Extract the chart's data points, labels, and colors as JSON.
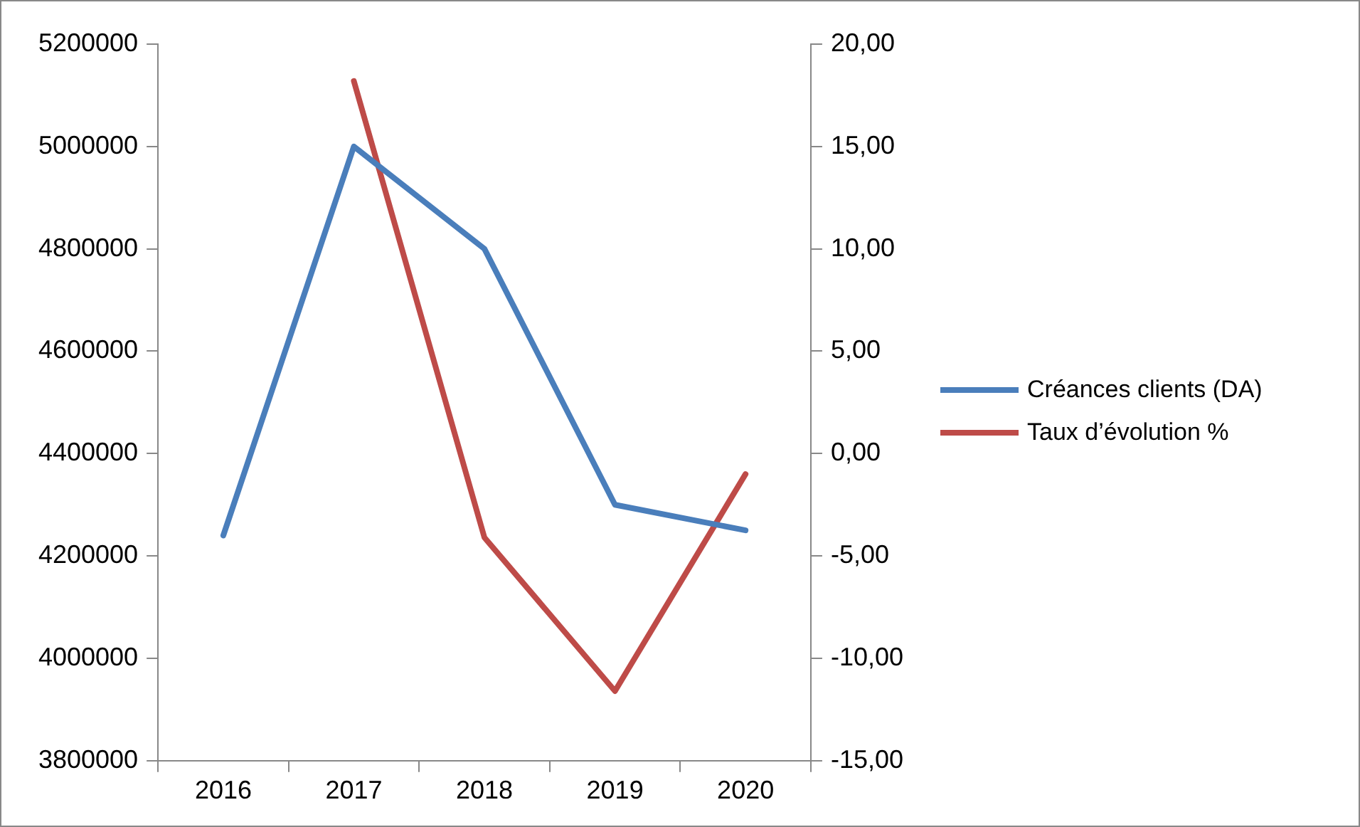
{
  "chart_data": {
    "type": "line",
    "categories": [
      "2016",
      "2017",
      "2018",
      "2019",
      "2020"
    ],
    "series": [
      {
        "name": "Créances clients (DA)",
        "color": "#4a7ebb",
        "values": [
          4240000,
          5000000,
          4800000,
          4300000,
          4250000
        ]
      },
      {
        "name": "Taux d’évolution %",
        "color": "#be4b48",
        "axis": "y2",
        "values": [
          null,
          18.2,
          -4.1,
          -11.6,
          -1.0
        ]
      }
    ],
    "ylim": [
      3800000,
      5200000
    ],
    "yticks": [
      3800000,
      4000000,
      4200000,
      4400000,
      4600000,
      4800000,
      5000000,
      5200000
    ],
    "y2lim": [
      -15,
      20
    ],
    "y2ticks": [
      {
        "value": -15,
        "label": "-15,00"
      },
      {
        "value": -10,
        "label": "-10,00"
      },
      {
        "value": -5,
        "label": "-5,00"
      },
      {
        "value": 0,
        "label": "0,00"
      },
      {
        "value": 5,
        "label": "5,00"
      },
      {
        "value": 10,
        "label": "10,00"
      },
      {
        "value": 15,
        "label": "15,00"
      },
      {
        "value": 20,
        "label": "20,00"
      }
    ],
    "grid": false,
    "legend": "right",
    "marker": "none",
    "line_style": "solid"
  }
}
